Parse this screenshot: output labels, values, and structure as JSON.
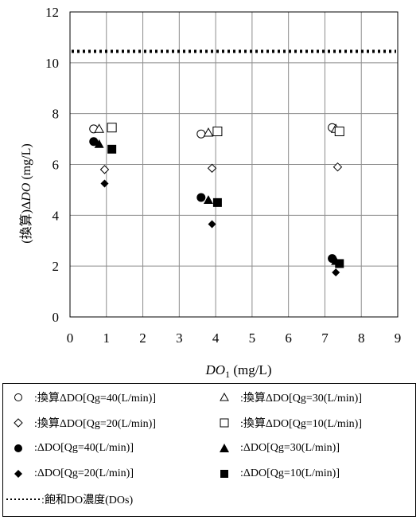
{
  "chart_data": {
    "type": "scatter",
    "ylabel_prefix": "(換算)Δ",
    "ylabel_italic": "DO",
    "ylabel_unit": " (mg/L)",
    "xlabel_italic": "DO",
    "xlabel_sub": "1",
    "xlabel_unit": " (mg/L)",
    "xlim": [
      0,
      9
    ],
    "ylim": [
      0,
      12
    ],
    "xticks": [
      "0",
      "1",
      "2",
      "3",
      "4",
      "5",
      "6",
      "7",
      "8",
      "9"
    ],
    "yticks": [
      "0",
      "2",
      "4",
      "6",
      "8",
      "10",
      "12"
    ],
    "grid": true,
    "legend_placement": "bottom",
    "reference_line": {
      "y": 10.45,
      "style": "dotted",
      "label": ":飽和DO濃度(DOs)"
    },
    "series": [
      {
        "name": ":換算ΔDO[Qg=40(L/min)]",
        "marker": "circle-open",
        "points": [
          [
            0.65,
            7.4
          ],
          [
            3.6,
            7.2
          ],
          [
            7.2,
            7.45
          ]
        ]
      },
      {
        "name": ":換算ΔDO[Qg=30(L/min)]",
        "marker": "triangle-open",
        "points": [
          [
            0.8,
            7.4
          ],
          [
            3.8,
            7.25
          ],
          [
            7.3,
            7.4
          ]
        ]
      },
      {
        "name": ":換算ΔDO[Qg=20(L/min)]",
        "marker": "diamond-open",
        "points": [
          [
            0.95,
            5.8
          ],
          [
            3.9,
            5.85
          ],
          [
            7.35,
            5.9
          ]
        ]
      },
      {
        "name": ":換算ΔDO[Qg=10(L/min)]",
        "marker": "square-open",
        "points": [
          [
            1.15,
            7.45
          ],
          [
            4.05,
            7.3
          ],
          [
            7.4,
            7.3
          ]
        ]
      },
      {
        "name": ":ΔDO[Qg=40(L/min)]",
        "marker": "circle-filled",
        "points": [
          [
            0.65,
            6.9
          ],
          [
            3.6,
            4.7
          ],
          [
            7.2,
            2.3
          ]
        ]
      },
      {
        "name": ":ΔDO[Qg=30(L/min)]",
        "marker": "triangle-filled",
        "points": [
          [
            0.8,
            6.8
          ],
          [
            3.8,
            4.6
          ],
          [
            7.3,
            2.2
          ]
        ]
      },
      {
        "name": ":ΔDO[Qg=20(L/min)]",
        "marker": "diamond-filled",
        "points": [
          [
            0.95,
            5.25
          ],
          [
            3.9,
            3.65
          ],
          [
            7.3,
            1.75
          ]
        ]
      },
      {
        "name": ":ΔDO[Qg=10(L/min)]",
        "marker": "square-filled",
        "points": [
          [
            1.15,
            6.6
          ],
          [
            4.05,
            4.5
          ],
          [
            7.4,
            2.1
          ]
        ]
      }
    ]
  }
}
